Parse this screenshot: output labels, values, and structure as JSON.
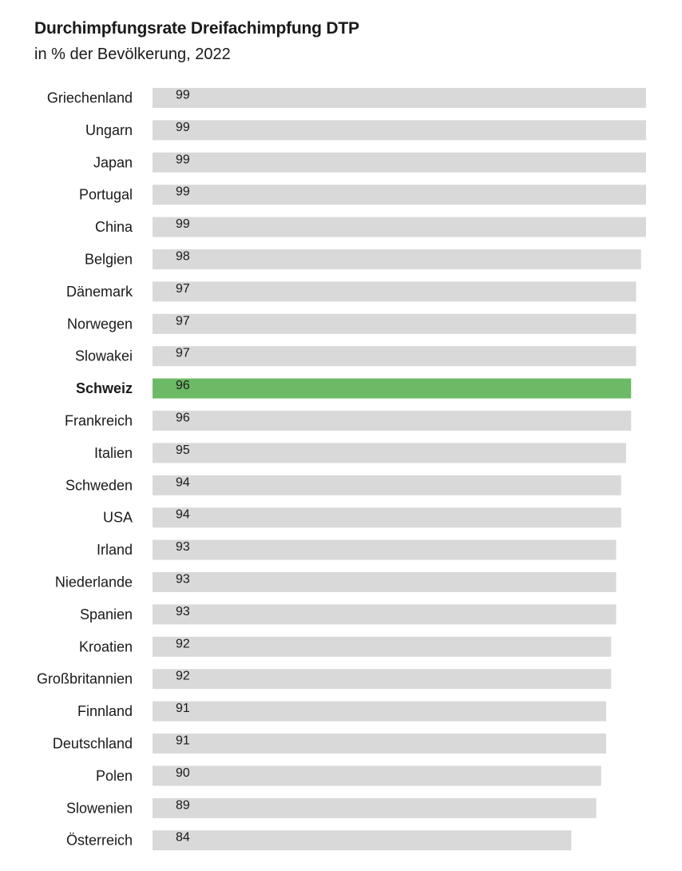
{
  "header": {
    "title": "Durchimpfungsrate Dreifachimpfung DTP",
    "subtitle": "in % der Bevölkerung, 2022"
  },
  "colors": {
    "bar": "#d9d9d9",
    "highlight": "#6cba65",
    "text": "#1a1a1a"
  },
  "chart_data": {
    "type": "bar",
    "orientation": "horizontal",
    "title": "Durchimpfungsrate Dreifachimpfung DTP",
    "subtitle": "in % der Bevölkerung, 2022",
    "xlabel": "",
    "ylabel": "",
    "xlim": [
      0,
      99
    ],
    "grid": false,
    "highlight": "Schweiz",
    "categories": [
      "Griechenland",
      "Ungarn",
      "Japan",
      "Portugal",
      "China",
      "Belgien",
      "Dänemark",
      "Norwegen",
      "Slowakei",
      "Schweiz",
      "Frankreich",
      "Italien",
      "Schweden",
      "USA",
      "Irland",
      "Niederlande",
      "Spanien",
      "Kroatien",
      "Großbritannien",
      "Finnland",
      "Deutschland",
      "Polen",
      "Slowenien",
      "Österreich"
    ],
    "values": [
      99,
      99,
      99,
      99,
      99,
      98,
      97,
      97,
      97,
      96,
      96,
      95,
      94,
      94,
      93,
      93,
      93,
      92,
      92,
      91,
      91,
      90,
      89,
      84
    ]
  }
}
